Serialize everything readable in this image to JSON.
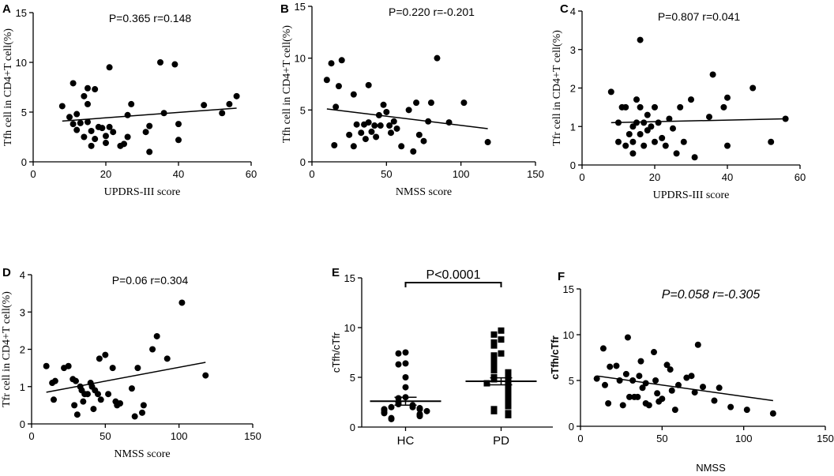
{
  "chart_data": [
    {
      "type": "scatter",
      "panel_label": "A",
      "annotation": "P=0.365 r=0.148",
      "ylabel": "Tfh cell in CD4+T cell(%)",
      "xlabel": "UPDRS-III score",
      "xlim": [
        0,
        60
      ],
      "xticks": [
        0,
        20,
        40,
        60
      ],
      "ylim": [
        0,
        15
      ],
      "yticks": [
        0,
        5,
        10,
        15
      ],
      "x": [
        8,
        10,
        11,
        11,
        12,
        12,
        13,
        14,
        14,
        15,
        15,
        15,
        16,
        16,
        17,
        17,
        18,
        19,
        20,
        20,
        21,
        21,
        22,
        24,
        25,
        26,
        26,
        27,
        31,
        32,
        32,
        35,
        36,
        39,
        40,
        40,
        47,
        52,
        54,
        56
      ],
      "values": [
        5.6,
        4.5,
        7.9,
        3.8,
        4.8,
        3.2,
        3.9,
        6.6,
        2.5,
        7.4,
        5.8,
        4.0,
        3.1,
        1.6,
        7.3,
        2.3,
        3.5,
        3.4,
        2.6,
        1.9,
        3.5,
        9.5,
        3.0,
        1.6,
        1.8,
        2.5,
        4.7,
        5.8,
        3.0,
        1.0,
        3.6,
        10.0,
        4.9,
        9.8,
        3.8,
        2.2,
        5.7,
        4.9,
        5.8,
        6.6
      ],
      "fit": {
        "x": [
          8,
          56
        ],
        "values": [
          4.1,
          5.4
        ]
      }
    },
    {
      "type": "scatter",
      "panel_label": "B",
      "annotation": "P=0.220  r=-0.201",
      "ylabel": "Tfh cell in CD4+T cell(%)",
      "xlabel": "NMSS score",
      "xlim": [
        0,
        150
      ],
      "xticks": [
        0,
        50,
        100,
        150
      ],
      "ylim": [
        0,
        15
      ],
      "yticks": [
        0,
        5,
        10,
        15
      ],
      "x": [
        10,
        13,
        15,
        16,
        18,
        20,
        25,
        28,
        28,
        30,
        33,
        35,
        36,
        38,
        38,
        40,
        42,
        43,
        45,
        46,
        48,
        50,
        52,
        53,
        55,
        57,
        60,
        65,
        68,
        70,
        72,
        75,
        78,
        80,
        84,
        92,
        102,
        118
      ],
      "values": [
        7.9,
        9.5,
        1.6,
        5.3,
        7.3,
        9.8,
        2.6,
        6.5,
        1.5,
        3.6,
        2.8,
        3.6,
        2.2,
        7.4,
        3.8,
        2.9,
        3.5,
        2.4,
        4.5,
        3.5,
        5.5,
        4.8,
        3.5,
        2.8,
        3.9,
        3.2,
        1.5,
        5.0,
        1.0,
        5.7,
        2.6,
        2.0,
        3.9,
        5.7,
        10.0,
        3.8,
        5.7,
        1.9
      ],
      "fit": {
        "x": [
          10,
          118
        ],
        "values": [
          5.1,
          3.2
        ]
      }
    },
    {
      "type": "scatter",
      "panel_label": "C",
      "annotation": "P=0.807  r=0.041",
      "ylabel": "Tfr cell in CD4+T cell(%)",
      "xlabel": "UPDRS-III  score",
      "xlim": [
        0,
        60
      ],
      "xticks": [
        0,
        20,
        40,
        60
      ],
      "ylim": [
        0,
        4
      ],
      "yticks": [
        0,
        1,
        2,
        3,
        4
      ],
      "x": [
        8,
        10,
        10,
        11,
        12,
        12,
        13,
        14,
        14,
        14,
        15,
        15,
        16,
        16,
        16,
        17,
        17,
        18,
        18,
        19,
        20,
        20,
        21,
        22,
        23,
        24,
        25,
        26,
        27,
        28,
        30,
        31,
        35,
        36,
        39,
        40,
        40,
        47,
        52,
        56
      ],
      "values": [
        1.9,
        1.1,
        0.6,
        1.5,
        1.5,
        0.5,
        0.8,
        1.0,
        0.6,
        0.3,
        1.7,
        1.1,
        3.25,
        1.5,
        0.8,
        1.1,
        0.5,
        1.3,
        0.9,
        1.0,
        1.5,
        0.6,
        1.1,
        0.7,
        0.5,
        1.2,
        0.95,
        0.3,
        1.5,
        0.6,
        1.7,
        0.2,
        1.25,
        2.35,
        1.5,
        1.75,
        0.5,
        2.0,
        0.6,
        1.2
      ],
      "fit": {
        "x": [
          8,
          56
        ],
        "values": [
          1.1,
          1.2
        ]
      }
    },
    {
      "type": "scatter",
      "panel_label": "D",
      "annotation": "P=0.06  r=0.304",
      "ylabel": "Tfr cell in CD4+T cell(%)",
      "xlabel": "NMSS score",
      "xlim": [
        0,
        150
      ],
      "xticks": [
        0,
        50,
        100,
        150
      ],
      "ylim": [
        0,
        4
      ],
      "yticks": [
        0,
        1,
        2,
        3,
        4
      ],
      "x": [
        10,
        14,
        15,
        16,
        22,
        25,
        28,
        29,
        30,
        31,
        33,
        34,
        35,
        36,
        38,
        40,
        41,
        42,
        43,
        45,
        46,
        47,
        50,
        52,
        55,
        57,
        58,
        60,
        68,
        70,
        72,
        75,
        76,
        82,
        85,
        92,
        102,
        118
      ],
      "values": [
        1.55,
        1.1,
        0.65,
        1.15,
        1.5,
        1.55,
        1.2,
        0.5,
        1.15,
        0.25,
        1.0,
        0.9,
        0.6,
        0.8,
        0.8,
        1.1,
        1.0,
        0.4,
        0.9,
        0.8,
        1.75,
        0.65,
        1.85,
        0.8,
        1.5,
        0.6,
        0.5,
        0.55,
        0.95,
        0.2,
        1.5,
        0.3,
        0.5,
        2.0,
        2.35,
        1.75,
        3.25,
        1.3
      ],
      "fit": {
        "x": [
          10,
          118
        ],
        "values": [
          0.85,
          1.65
        ]
      }
    },
    {
      "type": "dot",
      "panel_label": "E",
      "annotation": "P<0.0001",
      "ylabel": "cTfh/cTfr",
      "ylim": [
        0,
        15
      ],
      "yticks": [
        0,
        5,
        10,
        15
      ],
      "categories": [
        "HC",
        "PD"
      ],
      "markers": [
        "circle",
        "square"
      ],
      "groups": [
        [
          7.5,
          7.4,
          6.4,
          6.3,
          5.0,
          4.0,
          3.0,
          2.9,
          2.5,
          2.3,
          2.2,
          2.0,
          2.0,
          1.9,
          1.8,
          1.8,
          1.7,
          1.6,
          1.5,
          1.4,
          1.3,
          1.2,
          1.1,
          0.9,
          0.8
        ],
        [
          9.7,
          9.3,
          8.8,
          8.5,
          8.2,
          7.4,
          7.2,
          6.8,
          6.4,
          6.2,
          5.9,
          5.7,
          5.5,
          5.3,
          5.0,
          4.8,
          4.7,
          4.5,
          4.4,
          4.2,
          4.0,
          3.9,
          3.7,
          3.5,
          3.3,
          3.2,
          3.0,
          2.8,
          2.6,
          2.5,
          2.3,
          2.1,
          1.8,
          1.6,
          1.4,
          1.2
        ]
      ],
      "means": [
        2.6,
        4.6
      ],
      "errors": [
        0.4,
        0.35
      ]
    },
    {
      "type": "scatter",
      "panel_label": "F",
      "annotation": "P=0.058 r=-0.305",
      "ylabel": "cTfh/cTfr",
      "xlabel": "NMSS",
      "xlim": [
        0,
        150
      ],
      "xticks": [
        0,
        50,
        100,
        150
      ],
      "ylim": [
        0,
        15
      ],
      "yticks": [
        0,
        5,
        10,
        15
      ],
      "x": [
        10,
        14,
        15,
        17,
        18,
        22,
        24,
        26,
        28,
        29,
        30,
        32,
        33,
        35,
        36,
        37,
        38,
        40,
        40,
        42,
        45,
        46,
        47,
        48,
        50,
        53,
        55,
        56,
        58,
        60,
        65,
        68,
        70,
        72,
        75,
        82,
        85,
        92,
        102,
        118
      ],
      "values": [
        5.2,
        8.5,
        4.5,
        2.5,
        6.5,
        6.6,
        5.0,
        2.3,
        5.7,
        9.7,
        3.2,
        5.0,
        3.2,
        3.2,
        5.5,
        7.1,
        4.2,
        2.5,
        4.7,
        2.3,
        8.1,
        5.0,
        3.6,
        2.7,
        3.0,
        6.7,
        6.2,
        3.9,
        1.8,
        4.5,
        5.3,
        5.5,
        3.7,
        8.9,
        4.3,
        2.8,
        4.2,
        2.1,
        1.8,
        1.4
      ],
      "fit": {
        "x": [
          10,
          118
        ],
        "values": [
          5.5,
          2.8
        ]
      }
    }
  ]
}
